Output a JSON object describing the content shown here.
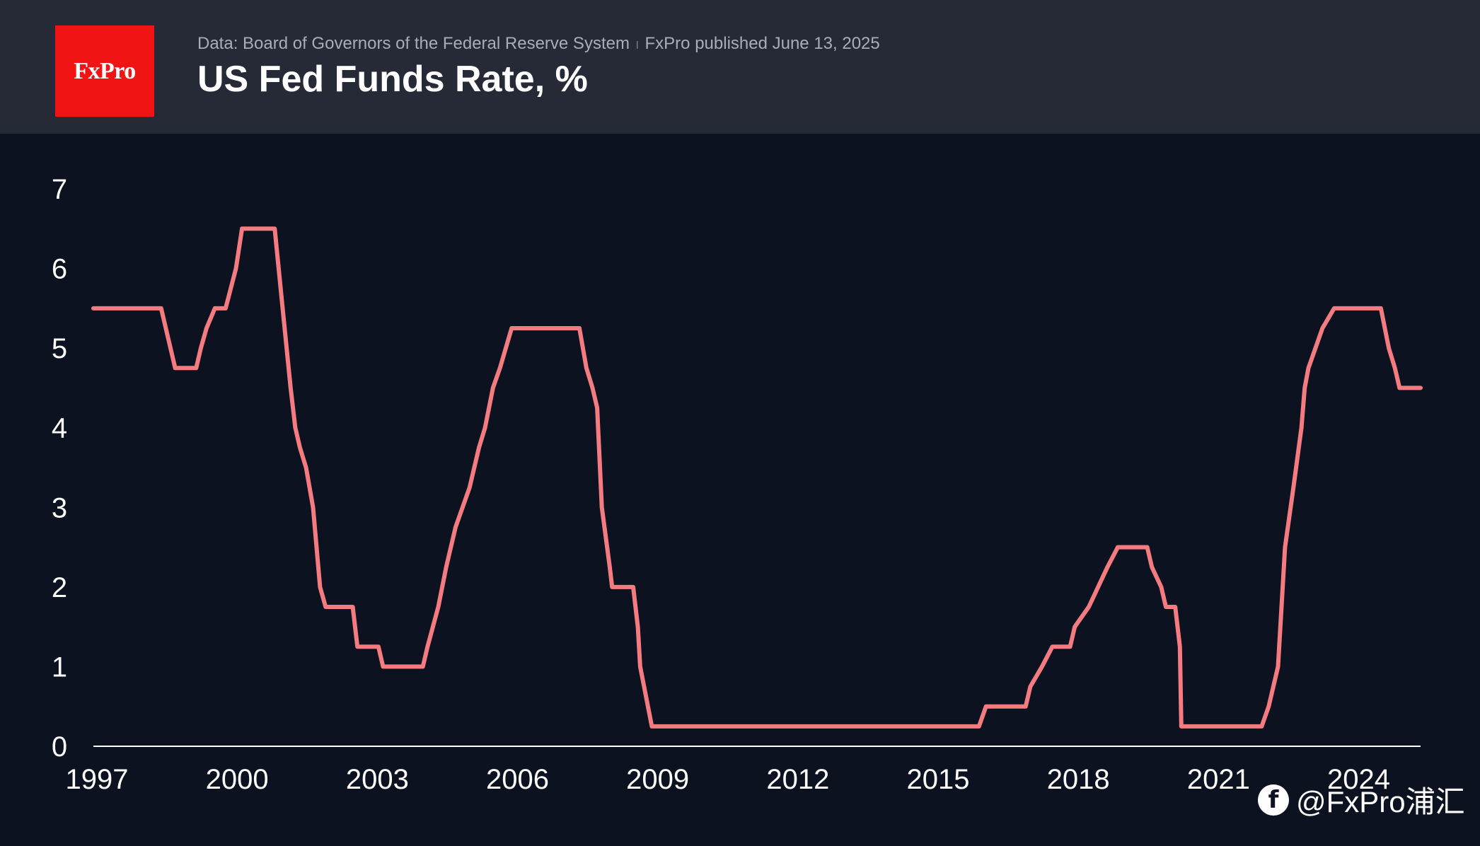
{
  "header": {
    "logo_text": "FxPro",
    "source": "Data: Board of Governors of the Federal Reserve System",
    "separator": "ı",
    "published": "FxPro published June 13, 2025",
    "title": "US Fed Funds Rate, %"
  },
  "watermark": {
    "icon": "brand-mark-icon",
    "text": "@FxPro浦汇"
  },
  "colors": {
    "background": "#0d1220",
    "header": "#262a37",
    "logo": "#f01414",
    "line": "#f47c80"
  },
  "chart_data": {
    "type": "line",
    "title": "US Fed Funds Rate, %",
    "xlabel": "",
    "ylabel": "",
    "xlim": [
      1997,
      2025.4
    ],
    "ylim": [
      0,
      7
    ],
    "x_ticks": [
      "1997",
      "2000",
      "2003",
      "2006",
      "2009",
      "2012",
      "2015",
      "2018",
      "2021",
      "2024"
    ],
    "y_ticks": [
      "0",
      "1",
      "2",
      "3",
      "4",
      "5",
      "6",
      "7"
    ],
    "grid": false,
    "series": [
      {
        "values": [
          [
            1997.0,
            5.5
          ],
          [
            1998.45,
            5.5
          ],
          [
            1998.75,
            4.75
          ],
          [
            1999.2,
            4.75
          ],
          [
            1999.3,
            5.0
          ],
          [
            1999.42,
            5.25
          ],
          [
            1999.6,
            5.5
          ],
          [
            1999.83,
            5.5
          ],
          [
            2000.05,
            6.0
          ],
          [
            2000.18,
            6.5
          ],
          [
            2000.88,
            6.5
          ],
          [
            2001.05,
            5.5
          ],
          [
            2001.22,
            4.5
          ],
          [
            2001.32,
            4.0
          ],
          [
            2001.42,
            3.75
          ],
          [
            2001.55,
            3.5
          ],
          [
            2001.7,
            3.0
          ],
          [
            2001.85,
            2.0
          ],
          [
            2001.97,
            1.75
          ],
          [
            2002.55,
            1.75
          ],
          [
            2002.65,
            1.25
          ],
          [
            2003.1,
            1.25
          ],
          [
            2003.2,
            1.0
          ],
          [
            2004.05,
            1.0
          ],
          [
            2004.15,
            1.25
          ],
          [
            2004.38,
            1.75
          ],
          [
            2004.55,
            2.25
          ],
          [
            2004.75,
            2.75
          ],
          [
            2005.05,
            3.25
          ],
          [
            2005.25,
            3.75
          ],
          [
            2005.38,
            4.0
          ],
          [
            2005.55,
            4.5
          ],
          [
            2005.7,
            4.75
          ],
          [
            2005.95,
            5.25
          ],
          [
            2007.4,
            5.25
          ],
          [
            2007.55,
            4.75
          ],
          [
            2007.68,
            4.5
          ],
          [
            2007.78,
            4.25
          ],
          [
            2007.88,
            3.0
          ],
          [
            2008.05,
            2.25
          ],
          [
            2008.1,
            2.0
          ],
          [
            2008.55,
            2.0
          ],
          [
            2008.65,
            1.5
          ],
          [
            2008.7,
            1.0
          ],
          [
            2008.95,
            0.25
          ],
          [
            2015.95,
            0.25
          ],
          [
            2016.1,
            0.5
          ],
          [
            2016.95,
            0.5
          ],
          [
            2017.05,
            0.75
          ],
          [
            2017.3,
            1.0
          ],
          [
            2017.52,
            1.25
          ],
          [
            2017.9,
            1.25
          ],
          [
            2018.0,
            1.5
          ],
          [
            2018.3,
            1.75
          ],
          [
            2018.5,
            2.0
          ],
          [
            2018.7,
            2.25
          ],
          [
            2018.92,
            2.5
          ],
          [
            2019.55,
            2.5
          ],
          [
            2019.65,
            2.25
          ],
          [
            2019.85,
            2.0
          ],
          [
            2019.95,
            1.75
          ],
          [
            2020.15,
            1.75
          ],
          [
            2020.25,
            1.25
          ],
          [
            2020.28,
            0.25
          ],
          [
            2022.0,
            0.25
          ],
          [
            2022.15,
            0.5
          ],
          [
            2022.35,
            1.0
          ],
          [
            2022.5,
            2.5
          ],
          [
            2022.68,
            3.25
          ],
          [
            2022.85,
            4.0
          ],
          [
            2022.92,
            4.5
          ],
          [
            2023.0,
            4.75
          ],
          [
            2023.3,
            5.25
          ],
          [
            2023.55,
            5.5
          ],
          [
            2024.55,
            5.5
          ],
          [
            2024.72,
            5.0
          ],
          [
            2024.85,
            4.75
          ],
          [
            2024.95,
            4.5
          ],
          [
            2025.4,
            4.5
          ]
        ]
      }
    ]
  }
}
